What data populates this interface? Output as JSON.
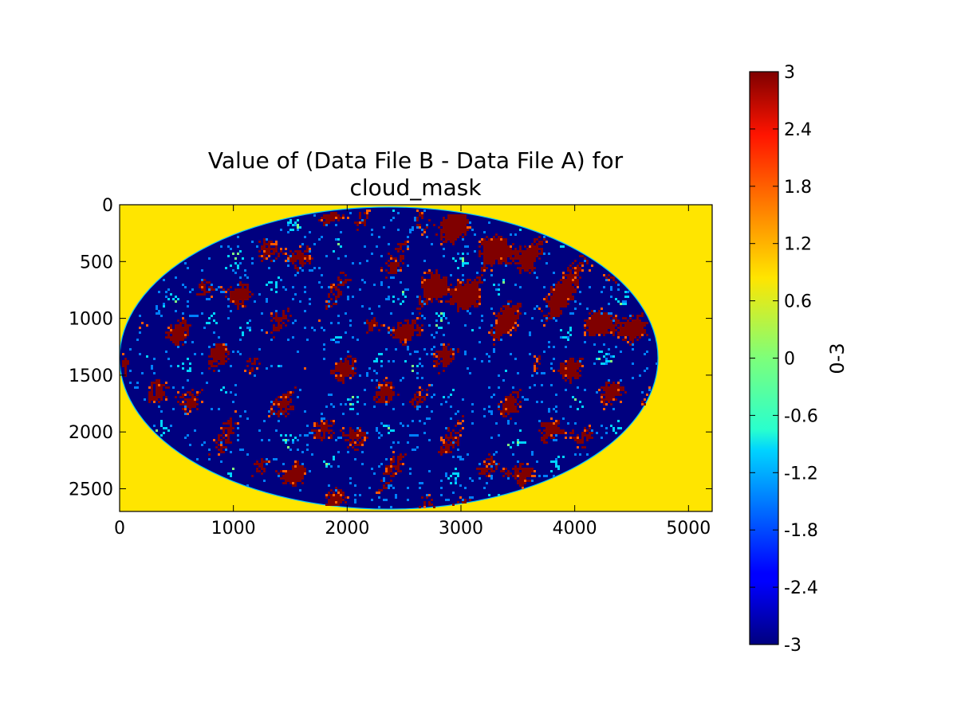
{
  "chart_data": {
    "type": "heatmap",
    "title_lines": [
      "Value of (Data File B - Data File A) for",
      "cloud_mask"
    ],
    "xlabel": "",
    "ylabel": "",
    "xlim": [
      0,
      5208
    ],
    "ylim": [
      2700,
      0
    ],
    "x_ticks": [
      0,
      1000,
      2000,
      3000,
      4000,
      5000
    ],
    "y_ticks": [
      0,
      500,
      1000,
      1500,
      2000,
      2500
    ],
    "colorbar": {
      "label": "0-3",
      "range": [
        -3,
        3
      ],
      "colormap": "jet",
      "ticks": [
        "3",
        "2.4",
        "1.8",
        "1.2",
        "0.6",
        "0",
        "-0.6",
        "-1.2",
        "-1.8",
        "-2.4",
        "-3"
      ]
    },
    "image": {
      "disk_center": [
        2366,
        1350
      ],
      "disk_radii": [
        2366,
        1330
      ],
      "background_value": 1,
      "background_color": "#ffe500",
      "disk_base_value": -3,
      "disk_base_color": "#00007f",
      "difference_values": [
        -3,
        -1.5,
        -1,
        0,
        3
      ],
      "grid": false
    }
  }
}
